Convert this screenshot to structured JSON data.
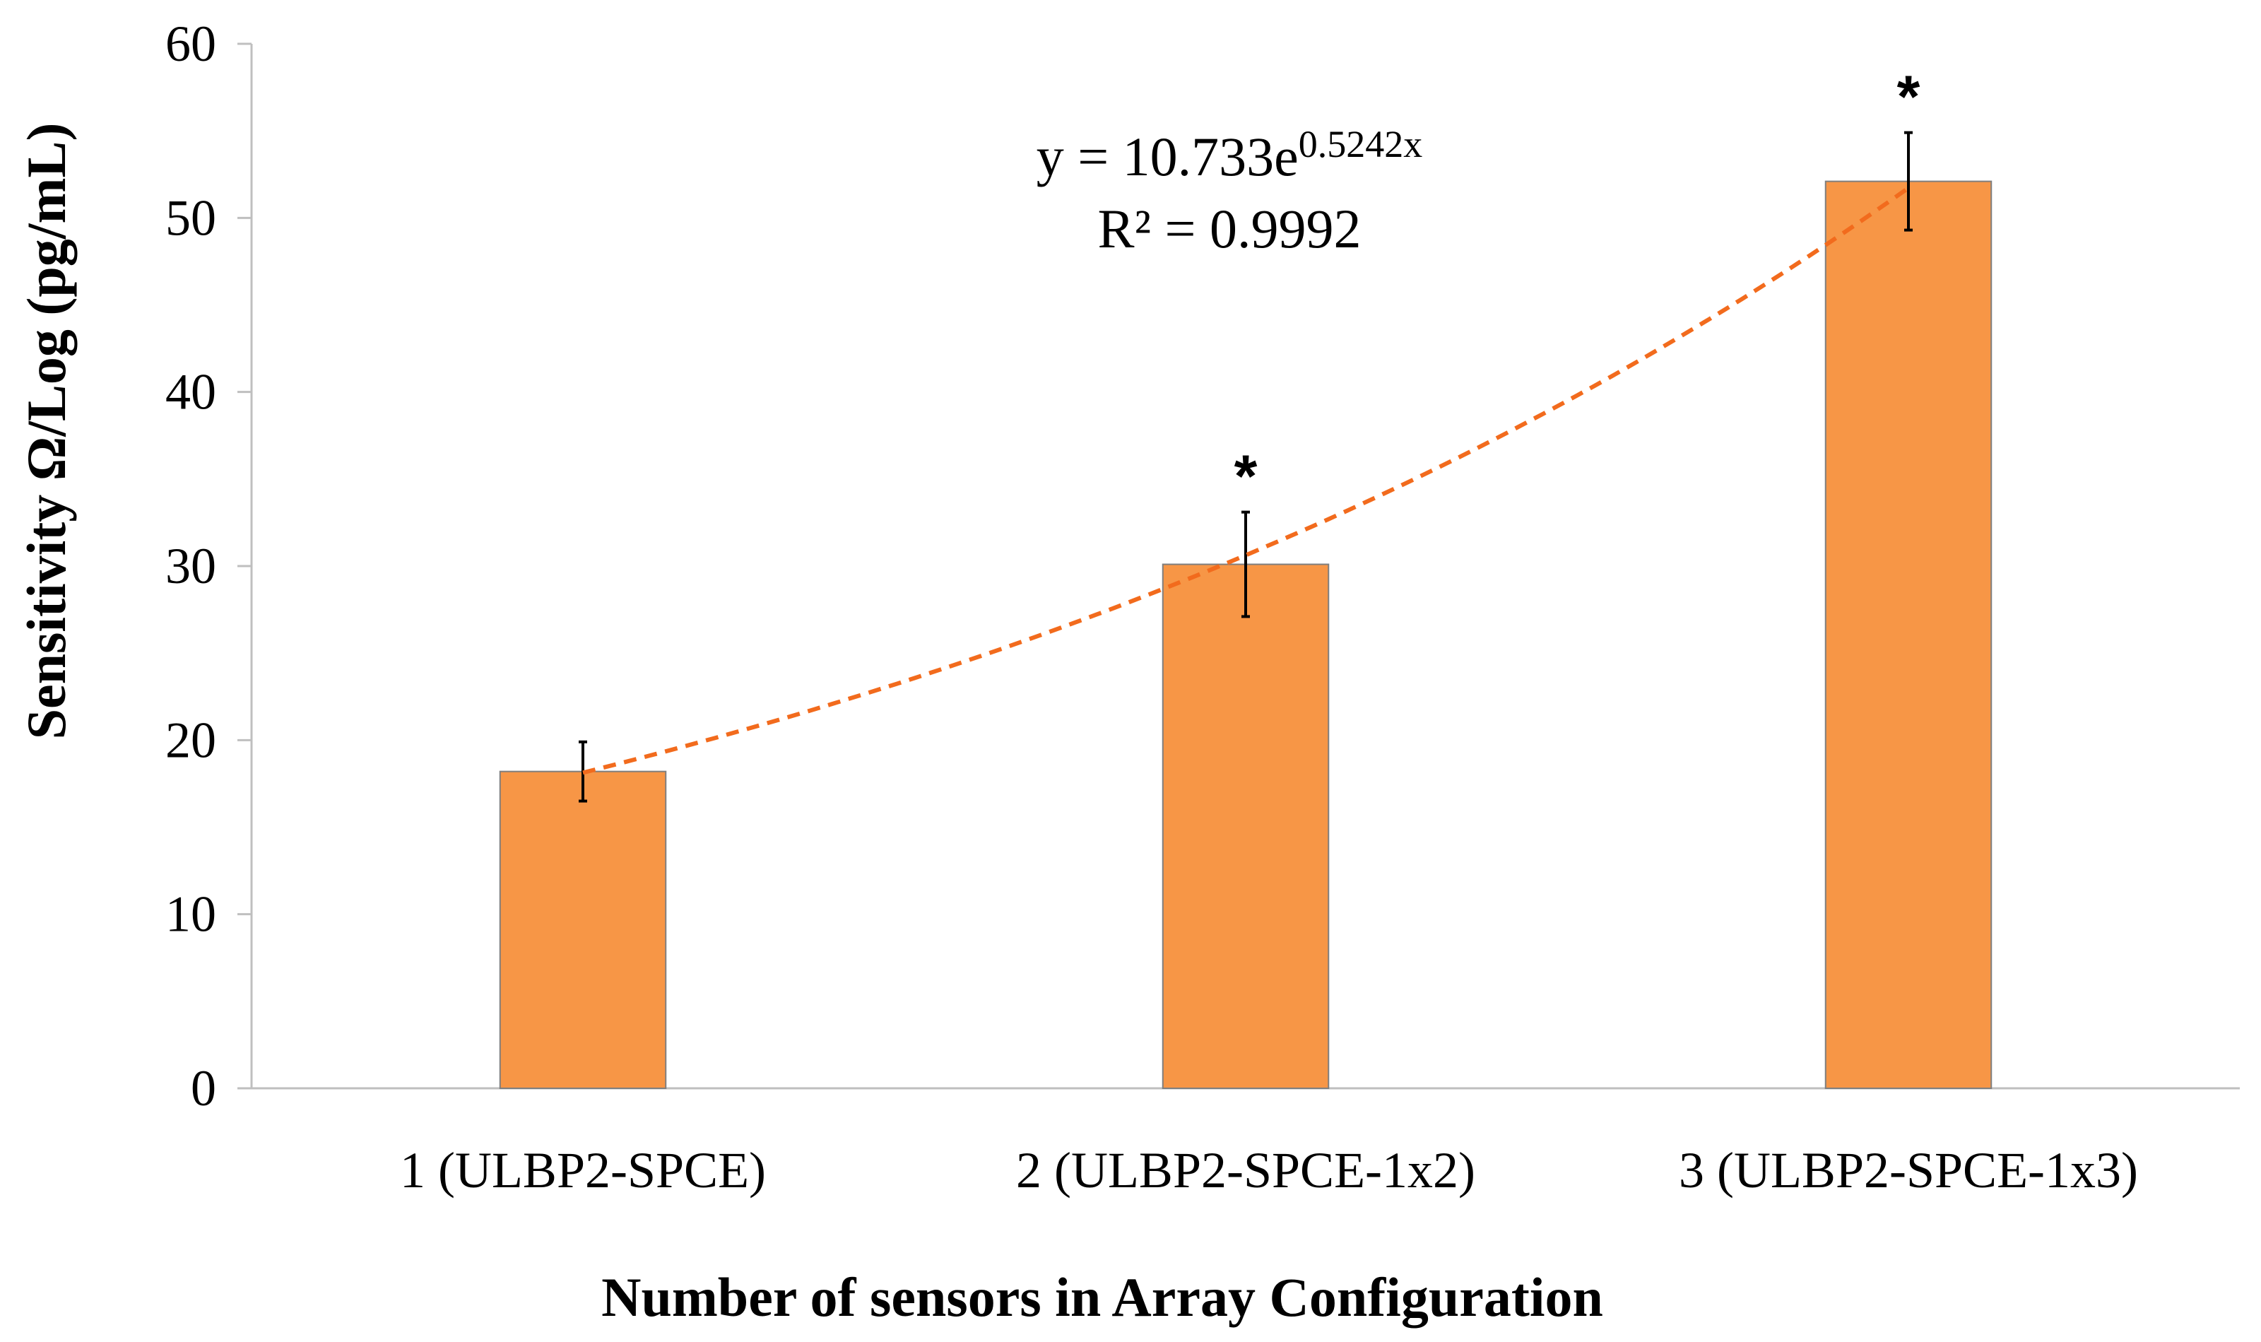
{
  "chart_data": {
    "type": "bar",
    "title": "",
    "xlabel": "Number of sensors in Array Configuration",
    "ylabel": "Sensitivity Ω/Log (pg/mL)",
    "categories": [
      "1 (ULBP2-SPCE)",
      "2 (ULBP2-SPCE-1x2)",
      "3 (ULBP2-SPCE-1x3)"
    ],
    "series": [
      {
        "values": [
          18.2,
          30.1,
          52.1
        ],
        "errors": [
          1.7,
          3.0,
          2.8
        ],
        "color": "#f79646",
        "edge_color": "#7f7f7f"
      }
    ],
    "significance": [
      "",
      "*",
      "*"
    ],
    "trendline": {
      "type": "exponential",
      "a": 10.733,
      "b": 0.5242,
      "color": "#f26b1d",
      "style": "dashed",
      "equation_main": "y = 10.733e",
      "equation_exp": "0.5242x",
      "r_squared_label": "R² = 0.9992"
    },
    "ylim": [
      0,
      60
    ],
    "yticks": [
      0,
      10,
      20,
      30,
      40,
      50,
      60
    ],
    "grid": false,
    "legend": "none"
  }
}
